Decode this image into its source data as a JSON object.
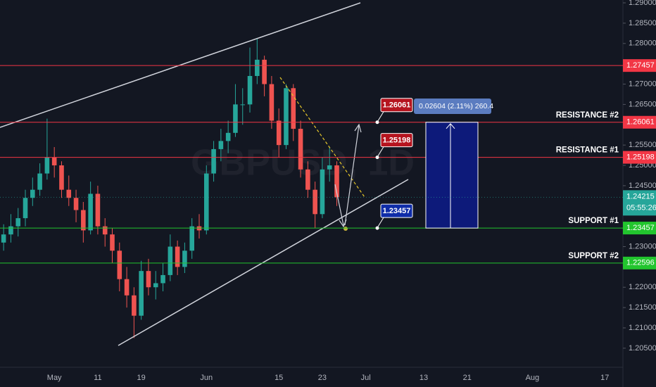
{
  "chart_data": {
    "type": "candlestick",
    "watermark": "GBPUSD, 1D",
    "categories": [
      null,
      null,
      null,
      null,
      null,
      null,
      null,
      "May",
      null,
      null,
      null,
      null,
      null,
      "11",
      null,
      null,
      null,
      null,
      null,
      "19",
      null,
      null,
      null,
      null,
      null,
      null,
      null,
      null,
      "Jun",
      null,
      null,
      null,
      null,
      null,
      null,
      null,
      null,
      null,
      "15",
      null,
      null,
      null,
      null,
      null,
      "23",
      null,
      null,
      null,
      null,
      null,
      "Jul",
      null,
      null,
      null,
      null,
      null,
      null,
      null,
      "13",
      null,
      null,
      null,
      null,
      null,
      "21",
      null,
      null,
      null,
      null,
      null,
      null,
      null,
      null,
      "Aug",
      null,
      null,
      null,
      null,
      null,
      null,
      null,
      null,
      null,
      "17",
      null,
      null
    ],
    "series": [
      {
        "open": [
          1.231,
          1.233,
          1.235,
          1.237,
          1.242,
          1.244,
          1.248,
          1.252,
          1.25,
          1.244,
          1.242,
          1.239,
          1.234,
          1.243,
          1.235,
          1.233,
          1.229,
          1.222,
          1.218,
          1.213,
          1.224,
          1.22,
          1.221,
          1.223,
          1.23,
          1.225,
          1.229,
          1.235,
          1.234,
          1.248,
          1.254,
          1.256,
          1.258,
          1.265,
          1.265,
          1.272,
          1.276,
          1.27,
          1.261,
          1.255,
          1.269,
          1.259,
          1.249,
          1.244,
          1.238,
          1.249,
          1.25,
          null,
          null,
          null,
          null,
          null,
          null,
          null,
          null,
          null,
          null,
          null,
          null,
          null,
          null,
          null,
          null,
          null,
          null,
          null,
          null,
          null,
          null,
          null,
          null,
          null,
          null,
          null,
          null,
          null,
          null,
          null,
          null,
          null,
          null,
          null,
          null,
          null,
          null,
          null
        ],
        "high": [
          1.2355,
          1.238,
          1.2395,
          1.244,
          1.247,
          1.2505,
          1.2615,
          1.2545,
          1.251,
          1.2475,
          1.244,
          1.241,
          1.246,
          1.245,
          1.237,
          1.2345,
          1.231,
          1.225,
          1.22,
          1.2265,
          1.227,
          1.224,
          1.226,
          1.233,
          1.2315,
          1.231,
          1.237,
          1.238,
          1.25,
          1.256,
          1.259,
          1.261,
          1.27,
          1.269,
          1.279,
          1.2812,
          1.277,
          1.272,
          1.264,
          1.27,
          1.27,
          1.261,
          1.251,
          1.246,
          1.252,
          1.2545,
          1.251,
          null,
          null,
          null,
          null,
          null,
          null,
          null,
          null,
          null,
          null,
          null,
          null,
          null,
          null,
          null,
          null,
          null,
          null,
          null,
          null,
          null,
          null,
          null,
          null,
          null,
          null,
          null,
          null,
          null,
          null,
          null,
          null,
          null,
          null,
          null,
          null,
          null,
          null,
          null
        ],
        "low": [
          1.229,
          1.231,
          1.2325,
          1.235,
          1.24,
          1.2425,
          1.2465,
          1.247,
          1.242,
          1.24,
          1.236,
          1.231,
          1.233,
          1.233,
          1.23,
          1.226,
          1.219,
          1.215,
          1.2075,
          1.212,
          1.218,
          1.217,
          1.219,
          1.2215,
          1.223,
          1.2235,
          1.227,
          1.232,
          1.233,
          1.246,
          1.251,
          1.253,
          1.257,
          1.26,
          1.263,
          1.27,
          1.267,
          1.259,
          1.252,
          1.254,
          1.256,
          1.247,
          1.242,
          1.2345,
          1.237,
          1.246,
          1.24,
          null,
          null,
          null,
          null,
          null,
          null,
          null,
          null,
          null,
          null,
          null,
          null,
          null,
          null,
          null,
          null,
          null,
          null,
          null,
          null,
          null,
          null,
          null,
          null,
          null,
          null,
          null,
          null,
          null,
          null,
          null,
          null,
          null,
          null,
          null,
          null,
          null,
          null,
          null
        ],
        "close": [
          1.233,
          1.235,
          1.237,
          1.242,
          1.244,
          1.248,
          1.252,
          1.25,
          1.244,
          1.242,
          1.239,
          1.234,
          1.243,
          1.235,
          1.233,
          1.229,
          1.222,
          1.218,
          1.213,
          1.224,
          1.22,
          1.221,
          1.223,
          1.23,
          1.225,
          1.229,
          1.235,
          1.234,
          1.248,
          1.254,
          1.256,
          1.258,
          1.265,
          1.265,
          1.272,
          1.276,
          1.27,
          1.261,
          1.255,
          1.269,
          1.259,
          1.249,
          1.244,
          1.238,
          1.249,
          1.25,
          1.24215,
          null,
          null,
          null,
          null,
          null,
          null,
          null,
          null,
          null,
          null,
          null,
          null,
          null,
          null,
          null,
          null,
          null,
          null,
          null,
          null,
          null,
          null,
          null,
          null,
          null,
          null,
          null,
          null,
          null,
          null,
          null,
          null,
          null,
          null,
          null,
          null,
          null,
          null,
          null
        ],
        "up_color": "#26a69a",
        "down_color": "#ef5350"
      }
    ],
    "ylim": [
      1.2003,
      1.2907
    ],
    "yticks": [
      {
        "value": 1.29,
        "label": "1.29000"
      },
      {
        "value": 1.285,
        "label": "1.28500"
      },
      {
        "value": 1.28,
        "label": "1.28000"
      },
      {
        "value": 1.275,
        "label": "1.27500"
      },
      {
        "value": 1.27,
        "label": "1.27000"
      },
      {
        "value": 1.265,
        "label": "1.26500"
      },
      {
        "value": 1.26,
        "label": "1.26000"
      },
      {
        "value": 1.255,
        "label": "1.25500"
      },
      {
        "value": 1.25,
        "label": "1.25000"
      },
      {
        "value": 1.245,
        "label": "1.24500"
      },
      {
        "value": 1.24,
        "label": "1.24000"
      },
      {
        "value": 1.235,
        "label": "1.23500"
      },
      {
        "value": 1.23,
        "label": "1.23000"
      },
      {
        "value": 1.225,
        "label": "1.22500"
      },
      {
        "value": 1.22,
        "label": "1.22000"
      },
      {
        "value": 1.215,
        "label": "1.21500"
      },
      {
        "value": 1.21,
        "label": "1.21000"
      },
      {
        "value": 1.205,
        "label": "1.20500"
      }
    ],
    "levels": [
      {
        "value": 1.27457,
        "color": "#f23645"
      },
      {
        "value": 1.26061,
        "label": "RESISTANCE #2",
        "color": "#f23645"
      },
      {
        "value": 1.25198,
        "label": "RESISTANCE #1",
        "color": "#f23645"
      },
      {
        "value": 1.23457,
        "label": "SUPPORT #1",
        "color": "#22c52e"
      },
      {
        "value": 1.22596,
        "label": "SUPPORT #2",
        "color": "#22c52e"
      }
    ],
    "current_price": {
      "value": 1.24215,
      "countdown": "05:55:26",
      "color": "#26a69a"
    },
    "measure": "0.02604 (2.11%) 260.4"
  }
}
